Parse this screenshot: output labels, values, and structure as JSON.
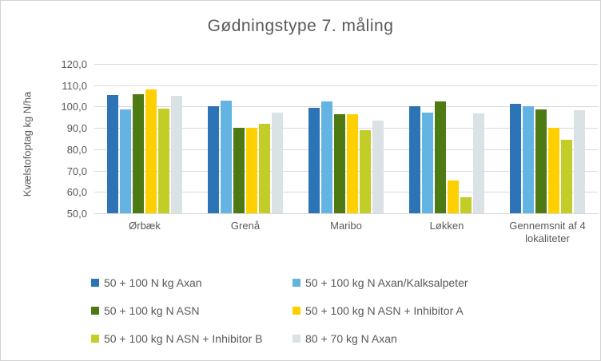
{
  "chart_data": {
    "type": "bar",
    "title": "Gødningstype 7. måling",
    "ylabel": "Kvælstofoptag kg N/ha",
    "xlabel": "",
    "ylim": [
      50,
      120
    ],
    "grid": true,
    "legend_position": "bottom",
    "gridline_color": "#d9d9d9",
    "text_color": "#595959",
    "yticks": [
      {
        "value": 120,
        "label": "120,0"
      },
      {
        "value": 110,
        "label": "110,0"
      },
      {
        "value": 100,
        "label": "100,0"
      },
      {
        "value": 90,
        "label": "90,0"
      },
      {
        "value": 80,
        "label": "80,0"
      },
      {
        "value": 70,
        "label": "70,0"
      },
      {
        "value": 60,
        "label": "60,0"
      },
      {
        "value": 50,
        "label": "50,0"
      }
    ],
    "categories": [
      "Ørbæk",
      "Grenå",
      "Maribo",
      "Løkken",
      "Gennemsnit af 4 lokaliteter"
    ],
    "series": [
      {
        "name": "50 + 100 N kg Axan",
        "color": "#2c74b5",
        "values": [
          105.3,
          100.1,
          99.4,
          100.2,
          101.3
        ]
      },
      {
        "name": "50 + 100 kg N Axan/Kalksalpeter",
        "color": "#64b4e3",
        "values": [
          98.5,
          102.6,
          102.5,
          97.2,
          100.2
        ]
      },
      {
        "name": "50 + 100 kg N ASN",
        "color": "#4e7a13",
        "values": [
          105.6,
          90.2,
          96.3,
          102.4,
          98.6
        ]
      },
      {
        "name": "50 + 100 kg N ASN + Inhibitor A",
        "color": "#ffd000",
        "values": [
          108.2,
          90.2,
          96.6,
          65.3,
          90.1
        ]
      },
      {
        "name": "50 + 100 kg N ASN + Inhibitor B",
        "color": "#c3cd28",
        "values": [
          98.9,
          92.1,
          89.0,
          57.5,
          84.4
        ]
      },
      {
        "name": "80 + 70 kg N Axan",
        "color": "#dbe2e6",
        "values": [
          105.2,
          97.3,
          93.5,
          96.7,
          98.2
        ]
      }
    ]
  }
}
